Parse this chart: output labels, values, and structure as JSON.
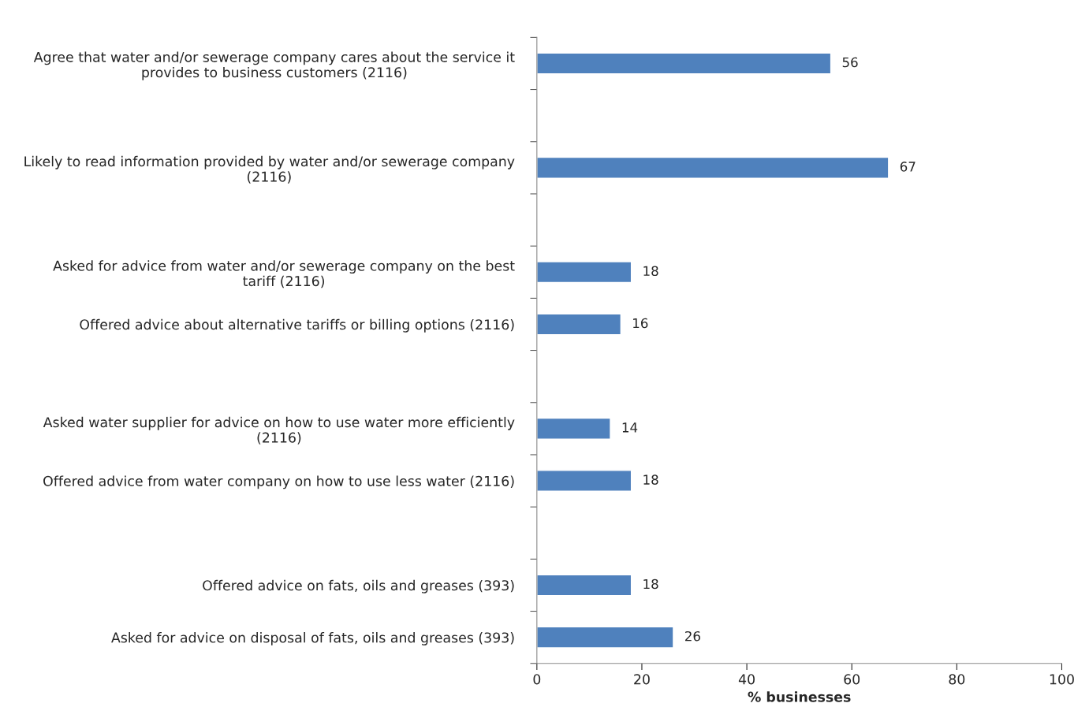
{
  "chart_data": {
    "type": "bar",
    "orientation": "horizontal",
    "xlabel": "% businesses",
    "categories": [
      "Agree that water and/or sewerage company cares about the service it\nprovides to business customers (2116)",
      null,
      "Likely to read information provided by water and/or sewerage company\n(2116)",
      null,
      "Asked for advice from water and/or sewerage company on the best\ntariff (2116)",
      "Offered advice about alternative tariffs or billing options (2116)",
      null,
      "Asked water supplier for advice on how to use water more efficiently\n(2116)",
      "Offered advice from water company on how to use less water (2116)",
      null,
      "Offered advice on fats, oils and greases (393)",
      "Asked for advice on disposal of fats, oils and greases (393)"
    ],
    "values": [
      56,
      null,
      67,
      null,
      18,
      16,
      null,
      14,
      18,
      null,
      18,
      26
    ],
    "color": "#4f81bd",
    "xlim": [
      0,
      100
    ],
    "xticks": [
      0,
      20,
      40,
      60,
      80,
      100
    ],
    "grid": false,
    "data_labels": true,
    "legend": false
  }
}
